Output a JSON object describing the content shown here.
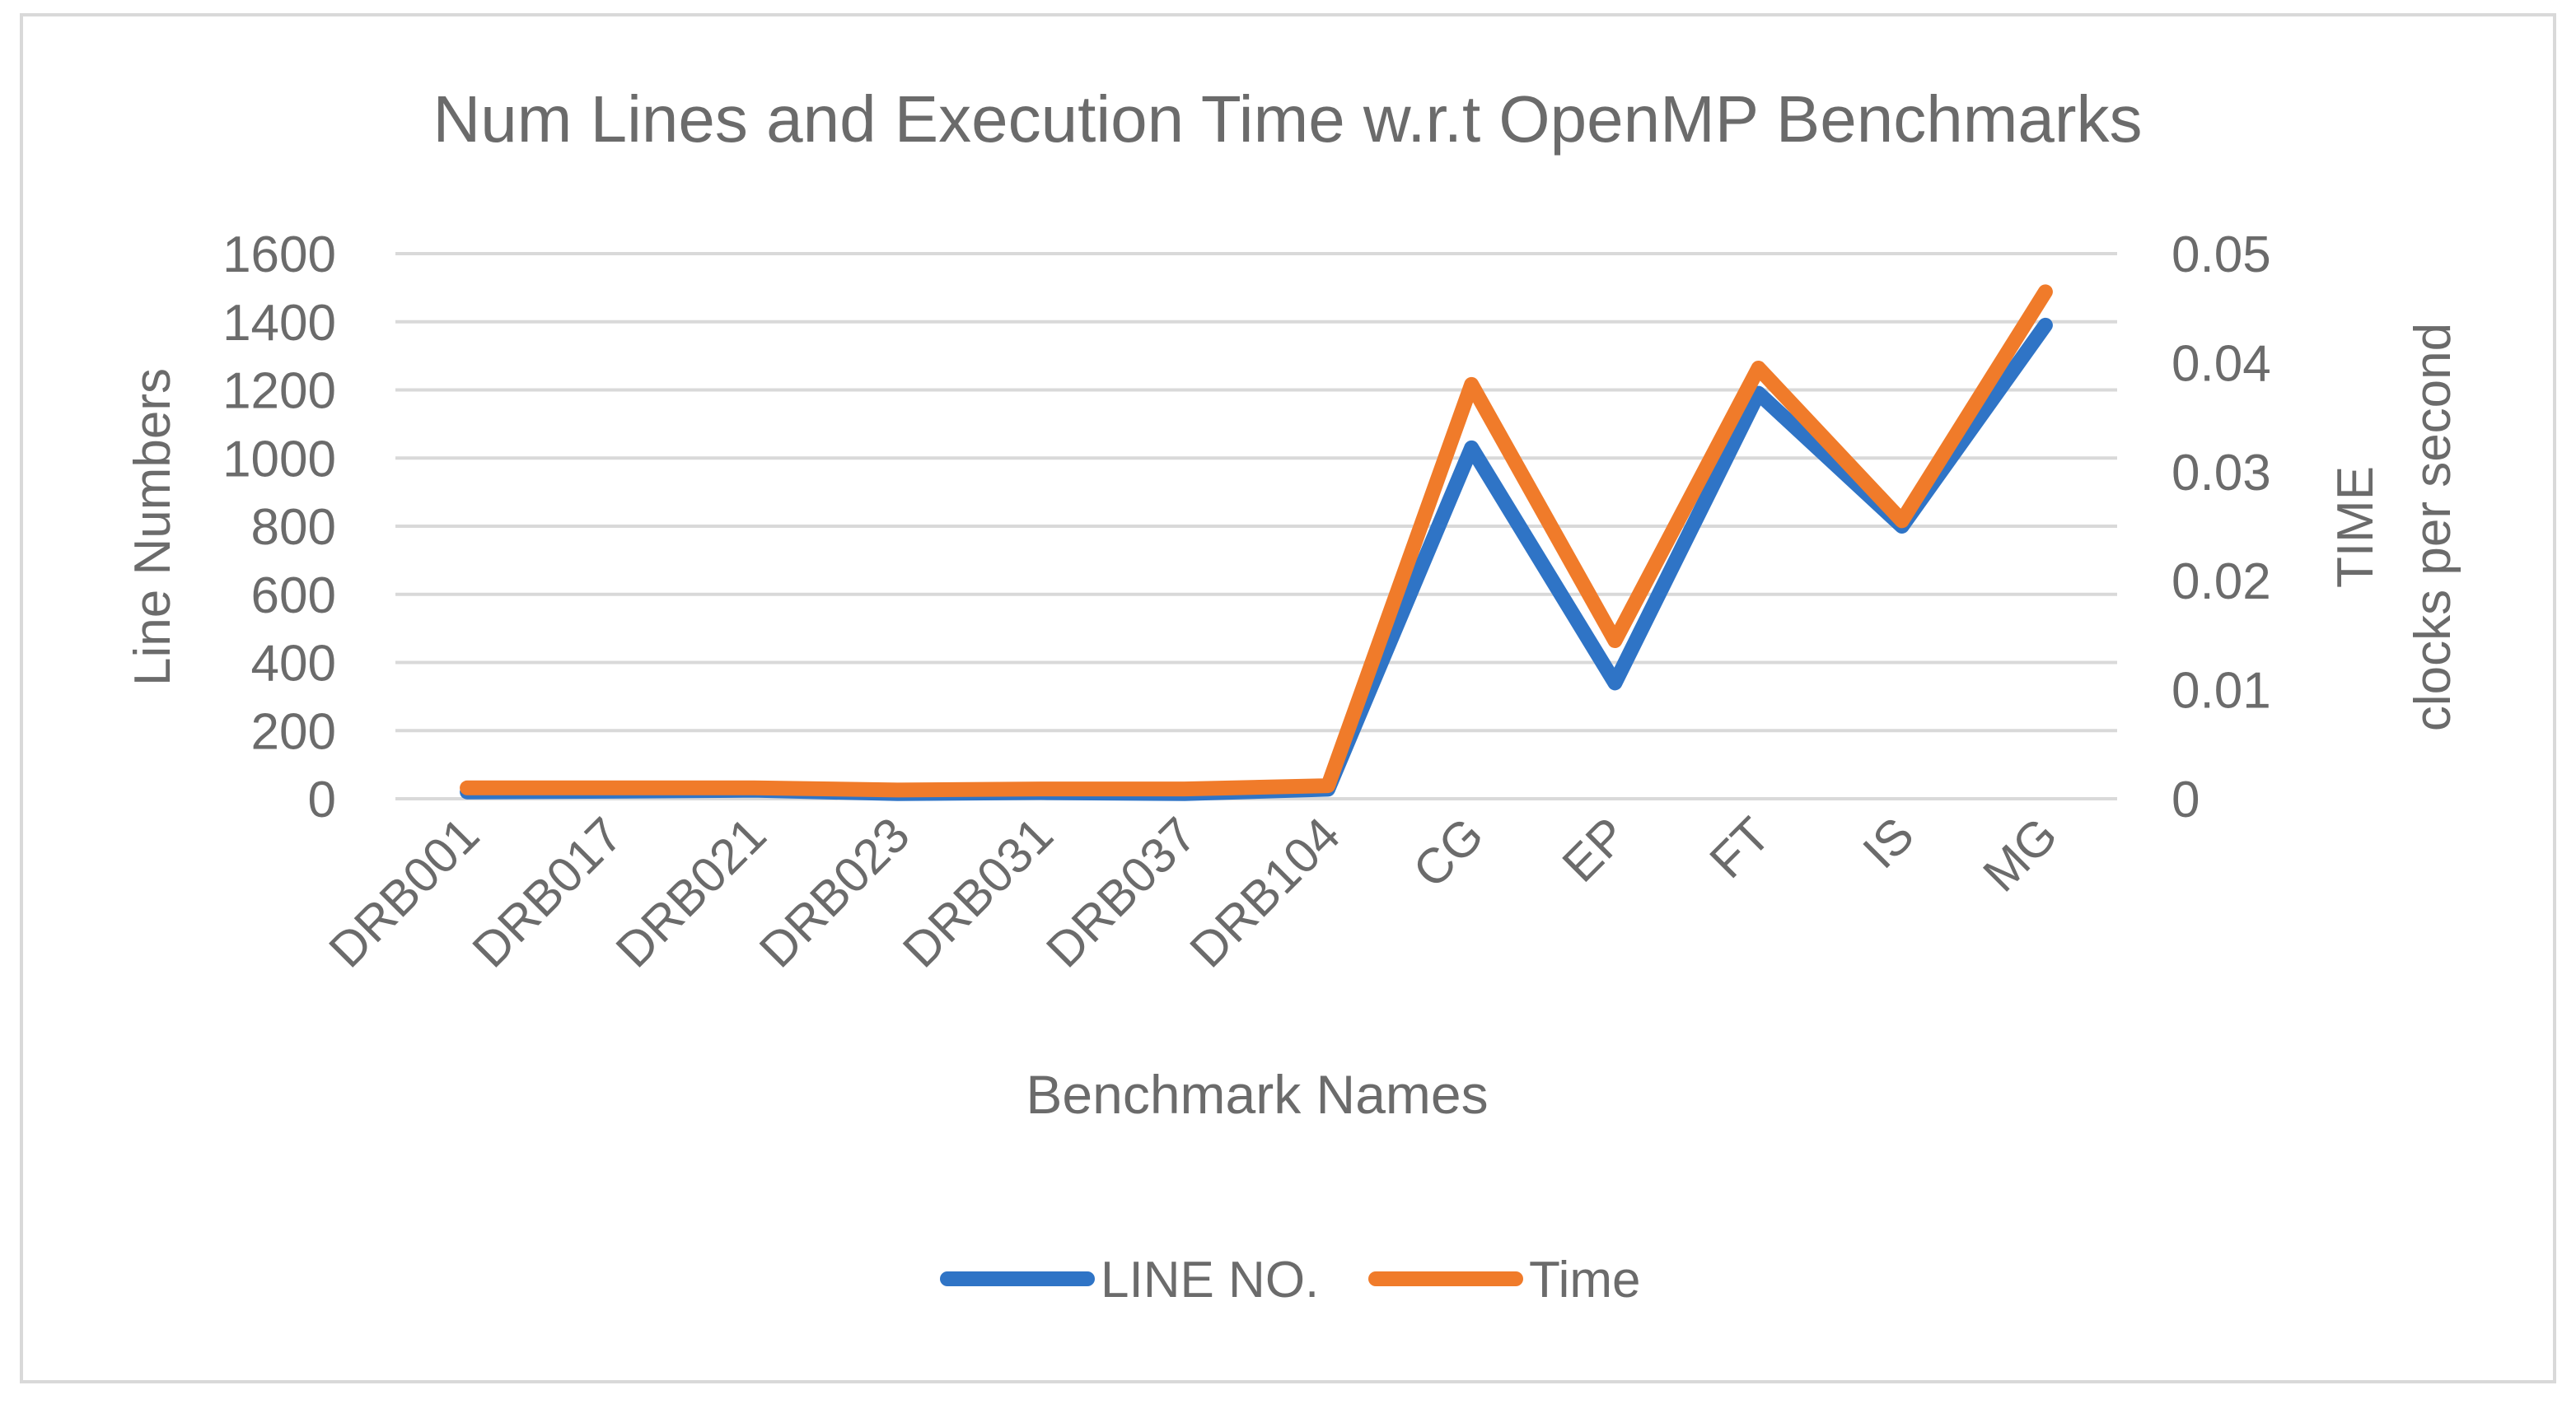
{
  "chart_data": {
    "type": "line",
    "title": "Num Lines and Execution Time w.r.t OpenMP Benchmarks",
    "xlabel": "Benchmark Names",
    "ylabel": "Line Numbers",
    "y2label_line1": "TIME",
    "y2label_line2": "clocks per second",
    "categories": [
      "DRB001",
      "DRB017",
      "DRB021",
      "DRB023",
      "DRB031",
      "DRB037",
      "DRB104",
      "CG",
      "EP",
      "FT",
      "IS",
      "MG"
    ],
    "ylim": [
      0,
      1600
    ],
    "yticks": [
      "0",
      "200",
      "400",
      "600",
      "800",
      "1000",
      "1200",
      "1400",
      "1600"
    ],
    "y2lim": [
      0,
      0.05
    ],
    "y2ticks": [
      "0",
      "0.01",
      "0.02",
      "0.03",
      "0.04",
      "0.05"
    ],
    "grid": true,
    "legend_position": "bottom",
    "series": [
      {
        "name": "LINE NO.",
        "axis": "left",
        "color": "#2f74c6",
        "values": [
          20,
          22,
          25,
          15,
          18,
          15,
          28,
          1030,
          340,
          1190,
          800,
          1390
        ]
      },
      {
        "name": "Time",
        "axis": "right",
        "color": "#f07b2a",
        "values": [
          0.001,
          0.001,
          0.001,
          0.0008,
          0.0009,
          0.0009,
          0.0012,
          0.038,
          0.0145,
          0.0395,
          0.0255,
          0.0465
        ]
      }
    ]
  }
}
